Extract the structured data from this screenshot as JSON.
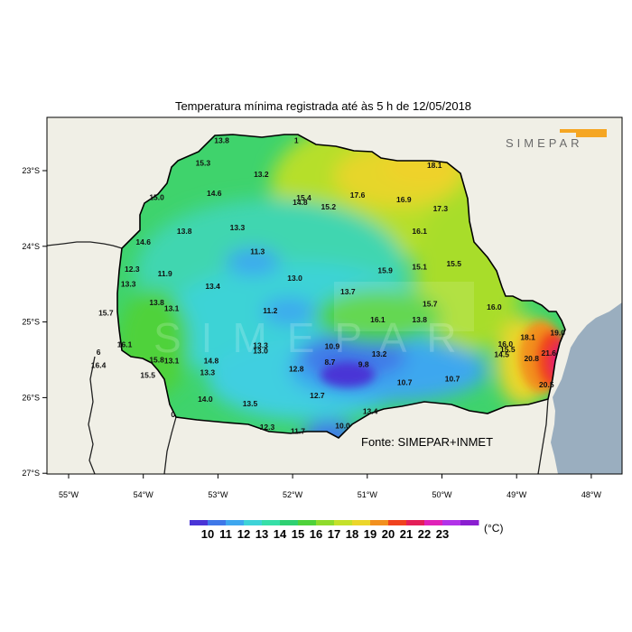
{
  "title": "Temperatura mínima registrada até às 5 h de 12/05/2018",
  "source": "Fonte: SIMEPAR+INMET",
  "logo_text": "SIMEPAR",
  "unit": "(°C)",
  "colors": {
    "ocean": "#9aaebf",
    "land": "#f0efe6",
    "orange_accent": "#f5a623"
  },
  "lon_ticks": [
    "55°W",
    "54°W",
    "53°W",
    "52°W",
    "51°W",
    "50°W",
    "49°W",
    "48°W"
  ],
  "lat_ticks": [
    "23°S",
    "24°S",
    "25°S",
    "26°S",
    "27°S"
  ],
  "colorbar": {
    "labels": [
      "10",
      "11",
      "12",
      "13",
      "14",
      "15",
      "16",
      "17",
      "18",
      "19",
      "20",
      "21",
      "22",
      "23"
    ],
    "colors": [
      "#4a35d6",
      "#3f78e8",
      "#3ea7ef",
      "#3ed3d8",
      "#37dfa8",
      "#2fd072",
      "#4fd23a",
      "#8fdb2c",
      "#c5e12a",
      "#ecd62a",
      "#f2901e",
      "#f0421e",
      "#e41f58",
      "#e022b8",
      "#b233e8",
      "#8a1fd0"
    ]
  },
  "stations": [
    {
      "value": "15.3",
      "lon": -53.2,
      "lat": -22.9
    },
    {
      "value": "13.2",
      "lon": -52.42,
      "lat": -23.05
    },
    {
      "value": "15.0",
      "lon": -53.82,
      "lat": -23.35
    },
    {
      "value": "14.6",
      "lon": -53.05,
      "lat": -23.3
    },
    {
      "value": "15.4",
      "lon": -51.85,
      "lat": -23.36
    },
    {
      "value": "14.8",
      "lon": -51.9,
      "lat": -23.42
    },
    {
      "value": "15.2",
      "lon": -51.52,
      "lat": -23.48
    },
    {
      "value": "17.6",
      "lon": -51.13,
      "lat": -23.32
    },
    {
      "value": "16.9",
      "lon": -50.51,
      "lat": -23.38
    },
    {
      "value": "18.1",
      "lon": -50.1,
      "lat": -22.93
    },
    {
      "value": "17.3",
      "lon": -50.02,
      "lat": -23.5
    },
    {
      "value": "13.8",
      "lon": -53.45,
      "lat": -23.8
    },
    {
      "value": "13.3",
      "lon": -52.74,
      "lat": -23.75
    },
    {
      "value": "14.6",
      "lon": -54.0,
      "lat": -23.94
    },
    {
      "value": "16.1",
      "lon": -50.3,
      "lat": -23.8
    },
    {
      "value": "11.3",
      "lon": -52.47,
      "lat": -24.07
    },
    {
      "value": "12.3",
      "lon": -54.15,
      "lat": -24.3
    },
    {
      "value": "11.9",
      "lon": -53.71,
      "lat": -24.36
    },
    {
      "value": "13.0",
      "lon": -51.97,
      "lat": -24.42
    },
    {
      "value": "15.9",
      "lon": -50.76,
      "lat": -24.32
    },
    {
      "value": "15.1",
      "lon": -50.3,
      "lat": -24.27
    },
    {
      "value": "15.5",
      "lon": -49.84,
      "lat": -24.23
    },
    {
      "value": "13.3",
      "lon": -54.2,
      "lat": -24.5
    },
    {
      "value": "13.4",
      "lon": -53.07,
      "lat": -24.53
    },
    {
      "value": "13.7",
      "lon": -51.26,
      "lat": -24.6
    },
    {
      "value": "13.8",
      "lon": -53.82,
      "lat": -24.74
    },
    {
      "value": "13.1",
      "lon": -53.62,
      "lat": -24.82
    },
    {
      "value": "15.7",
      "lon": -50.16,
      "lat": -24.76
    },
    {
      "value": "16.0",
      "lon": -49.3,
      "lat": -24.8
    },
    {
      "value": "11.2",
      "lon": -52.3,
      "lat": -24.85
    },
    {
      "value": "15.7",
      "lon": -54.5,
      "lat": -24.88
    },
    {
      "value": "16.1",
      "lon": -50.86,
      "lat": -24.97
    },
    {
      "value": "13.8",
      "lon": -50.3,
      "lat": -24.97
    },
    {
      "value": "18.1",
      "lon": -48.85,
      "lat": -25.2
    },
    {
      "value": "19.0",
      "lon": -48.45,
      "lat": -25.14
    },
    {
      "value": "16.1",
      "lon": -54.25,
      "lat": -25.3
    },
    {
      "value": "13.3",
      "lon": -52.43,
      "lat": -25.31
    },
    {
      "value": "13.0",
      "lon": -52.43,
      "lat": -25.38
    },
    {
      "value": "10.9",
      "lon": -51.47,
      "lat": -25.32
    },
    {
      "value": "13.2",
      "lon": -50.84,
      "lat": -25.42
    },
    {
      "value": "16.0",
      "lon": -49.15,
      "lat": -25.29
    },
    {
      "value": "15.5",
      "lon": -49.12,
      "lat": -25.36
    },
    {
      "value": "14.5",
      "lon": -49.2,
      "lat": -25.43
    },
    {
      "value": "21.6",
      "lon": -48.57,
      "lat": -25.41
    },
    {
      "value": "20.8",
      "lon": -48.8,
      "lat": -25.48
    },
    {
      "value": "6",
      "lon": -54.6,
      "lat": -25.4
    },
    {
      "value": "16.4",
      "lon": -54.6,
      "lat": -25.57
    },
    {
      "value": "15.8",
      "lon": -53.82,
      "lat": -25.5
    },
    {
      "value": "13.1",
      "lon": -53.62,
      "lat": -25.51
    },
    {
      "value": "14.8",
      "lon": -53.09,
      "lat": -25.51
    },
    {
      "value": "8.7",
      "lon": -51.5,
      "lat": -25.53
    },
    {
      "value": "9.8",
      "lon": -51.05,
      "lat": -25.56
    },
    {
      "value": "12.8",
      "lon": -51.95,
      "lat": -25.62
    },
    {
      "value": "15.5",
      "lon": -53.94,
      "lat": -25.7
    },
    {
      "value": "13.3",
      "lon": -53.14,
      "lat": -25.67
    },
    {
      "value": "10.7",
      "lon": -50.5,
      "lat": -25.8
    },
    {
      "value": "10.7",
      "lon": -49.86,
      "lat": -25.75
    },
    {
      "value": "20.5",
      "lon": -48.6,
      "lat": -25.83
    },
    {
      "value": "14.0",
      "lon": -53.17,
      "lat": -26.02
    },
    {
      "value": "12.7",
      "lon": -51.67,
      "lat": -25.97
    },
    {
      "value": "13.5",
      "lon": -52.57,
      "lat": -26.08
    },
    {
      "value": "13.4",
      "lon": -50.96,
      "lat": -26.18
    },
    {
      "value": "0",
      "lon": -53.6,
      "lat": -26.22
    },
    {
      "value": "12.3",
      "lon": -52.34,
      "lat": -26.39
    },
    {
      "value": "10.0",
      "lon": -51.33,
      "lat": -26.37
    },
    {
      "value": "11.7",
      "lon": -51.93,
      "lat": -26.44
    },
    {
      "value": "13.8",
      "lon": -52.95,
      "lat": -22.6
    },
    {
      "value": "1",
      "lon": -51.95,
      "lat": -22.6
    }
  ]
}
